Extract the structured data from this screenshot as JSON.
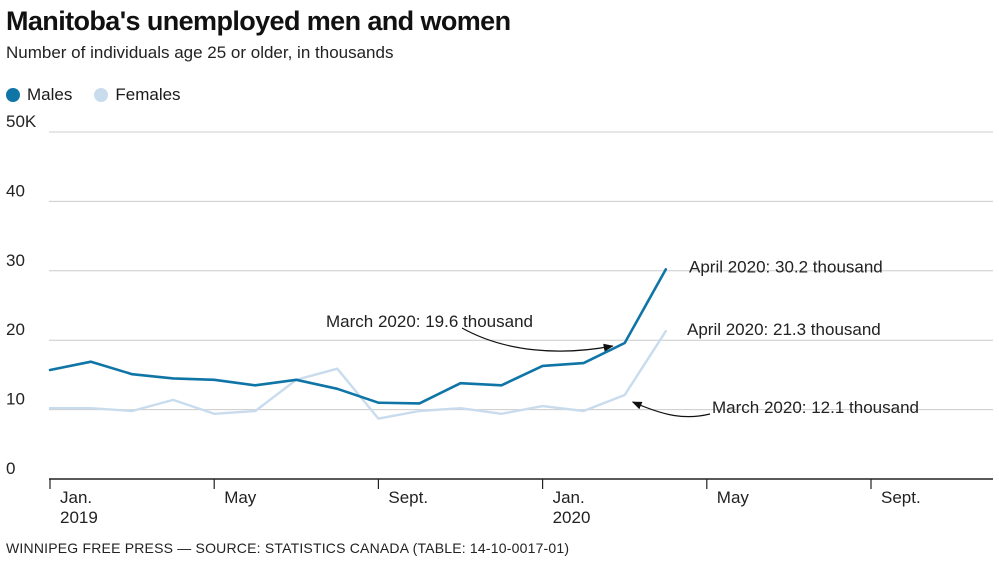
{
  "title": "Manitoba's unemployed men and women",
  "subtitle": "Number of individuals age 25 or older, in thousands",
  "source": "WINNIPEG FREE PRESS — SOURCE: STATISTICS CANADA (TABLE: 14-10-0017-01)",
  "colors": {
    "males": "#0f75a6",
    "females": "#c9dced",
    "grid": "#cccccc",
    "axis": "#222222"
  },
  "legend": [
    {
      "key": "males",
      "label": "Males"
    },
    {
      "key": "females",
      "label": "Females"
    }
  ],
  "chart_data": {
    "type": "line",
    "title": "Manitoba's unemployed men and women",
    "subtitle": "Number of individuals age 25 or older, in thousands",
    "xlabel": "",
    "ylabel": "",
    "ylim": [
      0,
      50
    ],
    "yticks": [
      0,
      10,
      20,
      30,
      40,
      50
    ],
    "ytick_labels": [
      "0",
      "10",
      "20",
      "30",
      "40",
      "50K"
    ],
    "grid": true,
    "legend_position": "top-left",
    "x_count": 24,
    "x": [
      "2019-01",
      "2019-02",
      "2019-03",
      "2019-04",
      "2019-05",
      "2019-06",
      "2019-07",
      "2019-08",
      "2019-09",
      "2019-10",
      "2019-11",
      "2019-12",
      "2020-01",
      "2020-02",
      "2020-03",
      "2020-04"
    ],
    "xticks": [
      {
        "index": 0,
        "label": "Jan.",
        "sublabel": "2019"
      },
      {
        "index": 4,
        "label": "May",
        "sublabel": ""
      },
      {
        "index": 8,
        "label": "Sept.",
        "sublabel": ""
      },
      {
        "index": 12,
        "label": "Jan.",
        "sublabel": "2020"
      },
      {
        "index": 16,
        "label": "May",
        "sublabel": ""
      },
      {
        "index": 20,
        "label": "Sept.",
        "sublabel": ""
      }
    ],
    "series": [
      {
        "key": "males",
        "name": "Males",
        "values": [
          15.7,
          16.9,
          15.1,
          14.5,
          14.3,
          13.5,
          14.3,
          13.0,
          11.0,
          10.9,
          13.8,
          13.5,
          16.3,
          16.7,
          19.6,
          30.2
        ]
      },
      {
        "key": "females",
        "name": "Females",
        "values": [
          10.2,
          10.2,
          9.8,
          11.4,
          9.4,
          9.8,
          14.3,
          15.9,
          8.7,
          9.8,
          10.2,
          9.4,
          10.5,
          9.8,
          12.1,
          21.3
        ]
      }
    ],
    "annotations": [
      {
        "text": "April 2020: 30.2 thousand",
        "series": "males",
        "index": 15,
        "value": 30.2
      },
      {
        "text": "March 2020: 19.6 thousand",
        "series": "males",
        "index": 14,
        "value": 19.6
      },
      {
        "text": "April 2020: 21.3 thousand",
        "series": "females",
        "index": 15,
        "value": 21.3
      },
      {
        "text": "March 2020: 12.1 thousand",
        "series": "females",
        "index": 14,
        "value": 12.1
      }
    ]
  }
}
